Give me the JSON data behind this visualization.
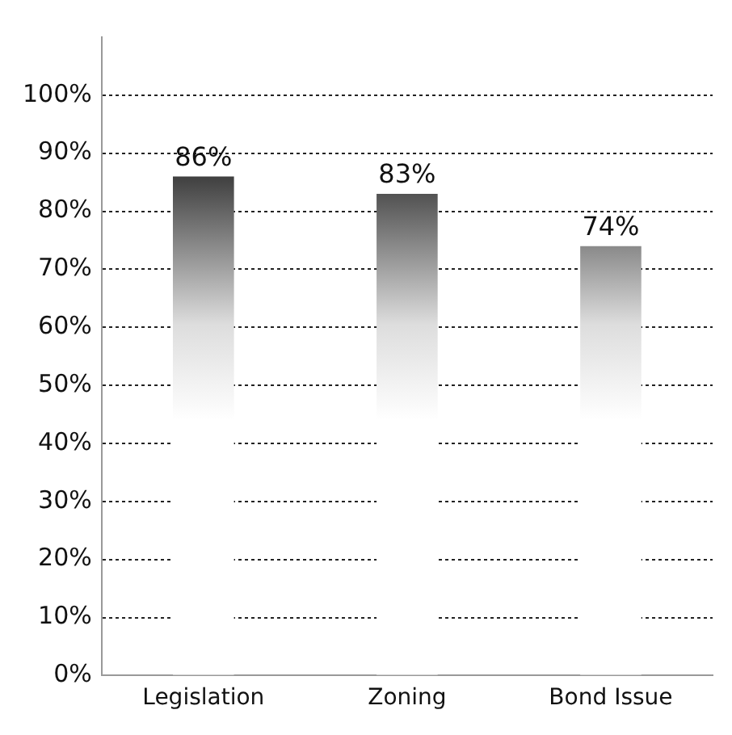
{
  "chart_data": {
    "type": "bar",
    "categories": [
      "Legislation",
      "Zoning",
      "Bond Issue"
    ],
    "values": [
      86,
      83,
      74
    ],
    "color": "#111111",
    "value_labels": [
      "86%",
      "83%",
      "74%"
    ],
    "ylim": [
      0,
      110
    ],
    "yticks": [
      {
        "value": 0,
        "label": "0%"
      },
      {
        "value": 10,
        "label": "10%"
      },
      {
        "value": 20,
        "label": "20%"
      },
      {
        "value": 30,
        "label": "30%"
      },
      {
        "value": 40,
        "label": "40%"
      },
      {
        "value": 50,
        "label": "50%"
      },
      {
        "value": 60,
        "label": "60%"
      },
      {
        "value": 70,
        "label": "70%"
      },
      {
        "value": 80,
        "label": "80%"
      },
      {
        "value": 90,
        "label": "90%"
      },
      {
        "value": 100,
        "label": "100%"
      }
    ],
    "grid": "y"
  }
}
